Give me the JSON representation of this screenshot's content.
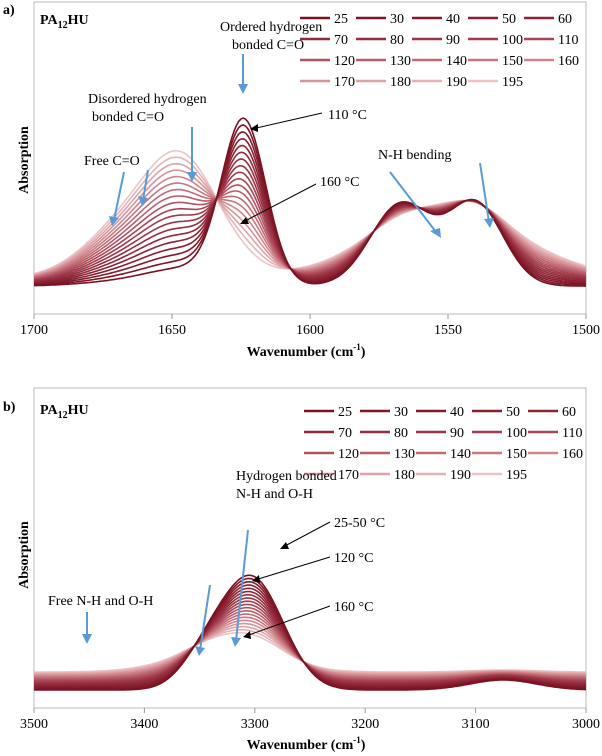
{
  "legend_colors": [
    "#7a1222",
    "#7e1626",
    "#821a2a",
    "#861f2f",
    "#8b2434",
    "#90293a",
    "#952e40",
    "#9a3547",
    "#a03c4e",
    "#a84657",
    "#b0525f",
    "#b85e69",
    "#c06a74",
    "#c8777f",
    "#d0858c",
    "#d79399",
    "#dea3a8",
    "#e5b3b7",
    "#ecc4c7",
    "#f1d2d4"
  ],
  "chart_data": [
    {
      "type": "line",
      "panel_label": "a)",
      "sample_label_main": "PA",
      "sample_label_sub": "12",
      "sample_label_tail": "HU",
      "xlabel_main": "Wavenumber (cm",
      "xlabel_sup": "-1",
      "xlabel_tail": ")",
      "ylabel": "Absorption",
      "xlim": [
        1700,
        1500
      ],
      "ylim": [
        0,
        1
      ],
      "x_ticks": [
        1700,
        1650,
        1600,
        1550,
        1500
      ],
      "series_names": [
        "25",
        "30",
        "40",
        "50",
        "60",
        "70",
        "80",
        "90",
        "100",
        "110",
        "120",
        "130",
        "140",
        "150",
        "160",
        "170",
        "180",
        "190",
        "195"
      ],
      "annotations": {
        "ordered_line1": "Ordered hydrogen",
        "ordered_line2": "bonded C=O",
        "disordered_line1": "Disordered hydrogen",
        "disordered_line2": "bonded C=O",
        "free": "Free C=O",
        "nh_bending": "N-H bending",
        "t110": "110 °C",
        "t160": "160 °C"
      },
      "peaks": [
        {
          "center": 1624,
          "width": 8,
          "amp_start": 0.66,
          "amp_end": 0.02
        },
        {
          "center": 1567,
          "width": 11,
          "amp_start": 0.33,
          "amp_end": 0.05
        },
        {
          "center": 1540,
          "width": 10,
          "amp_start": 0.33,
          "amp_end": 0.07
        },
        {
          "center": 1645,
          "width": 13,
          "amp_start": 0.06,
          "amp_end": 0.4
        },
        {
          "center": 1665,
          "width": 16,
          "amp_start": 0.02,
          "amp_end": 0.22
        },
        {
          "center": 1550,
          "width": 28,
          "amp_start": 0.0,
          "amp_end": 0.25
        }
      ],
      "baseline_start": 0.04,
      "baseline_end": 0.07
    },
    {
      "type": "line",
      "panel_label": "b)",
      "sample_label_main": "PA",
      "sample_label_sub": "12",
      "sample_label_tail": "HU",
      "xlabel_main": "Wavenumber (cm",
      "xlabel_sup": "-1",
      "xlabel_tail": ")",
      "ylabel": "Absorption",
      "xlim": [
        3500,
        3000
      ],
      "ylim": [
        0,
        1
      ],
      "x_ticks": [
        3500,
        3400,
        3300,
        3200,
        3100,
        3000
      ],
      "series_names": [
        "25",
        "30",
        "40",
        "50",
        "60",
        "70",
        "80",
        "90",
        "100",
        "110",
        "120",
        "130",
        "140",
        "150",
        "160",
        "170",
        "180",
        "190",
        "195"
      ],
      "annotations": {
        "hbond_line1": "Hydrogen bonded",
        "hbond_line2": "N-H and O-H",
        "free": "Free N-H and O-H",
        "t2550": "25-50 °C",
        "t120": "120 °C",
        "t160": "160 °C"
      },
      "peaks": [
        {
          "center": 3302,
          "width": 28,
          "amp_start": 0.55,
          "amp_end": 0.1
        },
        {
          "center": 3345,
          "width": 22,
          "amp_start": 0.14,
          "amp_end": 0.03
        },
        {
          "center": 3330,
          "width": 45,
          "amp_start": 0.0,
          "amp_end": 0.1
        },
        {
          "center": 3075,
          "width": 30,
          "amp_start": 0.05,
          "amp_end": 0.01
        }
      ],
      "baseline_start": 0.05,
      "baseline_end": 0.14
    }
  ]
}
